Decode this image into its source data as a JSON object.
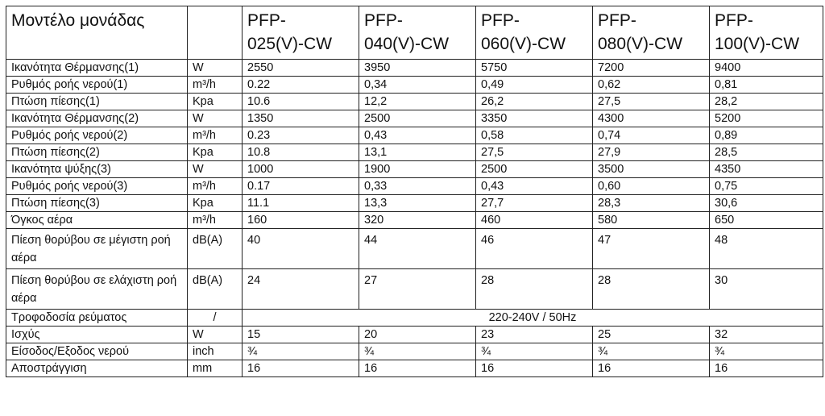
{
  "header": {
    "title": "Μοντέλο μονάδας",
    "unit": "",
    "models": [
      [
        "PFP-",
        "025(V)-CW"
      ],
      [
        "PFP-",
        "040(V)-CW"
      ],
      [
        "PFP-",
        "060(V)-CW"
      ],
      [
        "PFP-",
        "080(V)-CW"
      ],
      [
        "PFP-",
        "100(V)-CW"
      ]
    ]
  },
  "rows": [
    {
      "label": "Ικανότητα Θέρμανσης(1)",
      "unit": "W",
      "values": [
        "2550",
        "3950",
        "5750",
        "7200",
        "9400"
      ]
    },
    {
      "label": "Ρυθμός ροής νερού(1)",
      "unit": "m³/h",
      "values": [
        "0.22",
        "0,34",
        "0,49",
        "0,62",
        "0,81"
      ]
    },
    {
      "label": "Πτώση πίεσης(1)",
      "unit": "Kpa",
      "values": [
        "10.6",
        "12,2",
        "26,2",
        "27,5",
        "28,2"
      ]
    },
    {
      "label": "Ικανότητα Θέρμανσης(2)",
      "unit": "W",
      "values": [
        "1350",
        "2500",
        "3350",
        "4300",
        "5200"
      ]
    },
    {
      "label": "Ρυθμός ροής νερού(2)",
      "unit": "m³/h",
      "values": [
        "0.23",
        "0,43",
        "0,58",
        "0,74",
        "0,89"
      ]
    },
    {
      "label": "Πτώση πίεσης(2)",
      "unit": "Kpa",
      "values": [
        "10.8",
        "13,1",
        "27,5",
        "27,9",
        "28,5"
      ]
    },
    {
      "label": "Ικανότητα ψύξης(3)",
      "unit": "W",
      "values": [
        "1000",
        "1900",
        "2500",
        "3500",
        "4350"
      ]
    },
    {
      "label": "Ρυθμός ροής νερού(3)",
      "unit": "m³/h",
      "values": [
        "0.17",
        "0,33",
        "0,43",
        "0,60",
        "0,75"
      ]
    },
    {
      "label": "Πτώση πίεσης(3)",
      "unit": "Kpa",
      "values": [
        "11.1",
        "13,3",
        "27,7",
        "28,3",
        "30,6"
      ]
    },
    {
      "label": "Όγκος αέρα",
      "unit": "m³/h",
      "values": [
        "160",
        "320",
        "460",
        "580",
        "650"
      ]
    }
  ],
  "noise_rows": [
    {
      "label": "Πίεση θορύβου σε μέγιστη ροή αέρα",
      "unit": "dB(A)",
      "values": [
        "40",
        "44",
        "46",
        "47",
        "48"
      ]
    },
    {
      "label": "Πίεση θορύβου σε ελάχιστη ροή αέρα",
      "unit": "dB(A)",
      "values": [
        "24",
        "27",
        "28",
        "28",
        "30"
      ]
    }
  ],
  "power_supply": {
    "label": "Τροφοδοσία ρεύματος",
    "unit": "/",
    "value": "220-240V / 50Hz"
  },
  "tail_rows": [
    {
      "label": "Ισχύς",
      "unit": "W",
      "values": [
        "15",
        "20",
        "23",
        "25",
        "32"
      ]
    },
    {
      "label": "Είσοδος/Εξοδος νερού",
      "unit": "inch",
      "values": [
        "¾",
        "¾",
        "¾",
        "¾",
        "¾"
      ]
    },
    {
      "label": "Αποστράγγιση",
      "unit": "mm",
      "values": [
        "16",
        "16",
        "16",
        "16",
        "16"
      ]
    }
  ]
}
